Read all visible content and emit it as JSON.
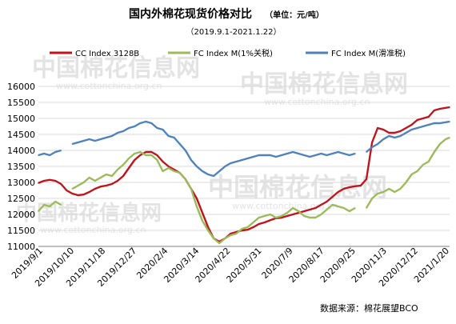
{
  "header": {
    "title": "国内外棉花现货价格对比",
    "unit": "（单位：元/吨）",
    "date_range": "（2019.9.1-2021.1.22）"
  },
  "source": "数据来源：棉花展望BCO",
  "watermark": {
    "brand_cn": "中国棉花信息网",
    "url": "www.cottonchina.org.cn"
  },
  "colors": {
    "cc_index": "#c0141c",
    "fc_1pct": "#9bbb59",
    "fc_sliding": "#4f81bd",
    "grid": "#d9d9d9",
    "axis": "#7f7f7f",
    "text": "#000000",
    "watermark": "#e3e3e3"
  },
  "chart_data": {
    "type": "line",
    "title": "国内外棉花现货价格对比",
    "subtitle": "（2019.9.1-2021.1.22）",
    "unit": "元/吨",
    "xlabel": "",
    "ylabel": "",
    "ylim": [
      11000,
      16000
    ],
    "yticks": [
      11000,
      11500,
      12000,
      12500,
      13000,
      13500,
      14000,
      14500,
      15000,
      15500,
      16000
    ],
    "y_tick_labels": [
      "11000",
      "11500",
      "12000",
      "12500",
      "13000",
      "13500",
      "14000",
      "14500",
      "15000",
      "15500",
      "16000"
    ],
    "x_tick_labels": [
      "2019/9/1",
      "2019/10/10",
      "2019/11/18",
      "2019/12/27",
      "2020/2/4",
      "2020/3/14",
      "2020/4/22",
      "2020/5/31",
      "2020/7/9",
      "2020/8/17",
      "2020/9/25",
      "2020/11/3",
      "2020/12/12",
      "2021/1/20"
    ],
    "x_start": "2019-09-01",
    "x_end": "2021-01-22",
    "grid": "horizontal",
    "legend_position": "top",
    "series": [
      {
        "name": "CC Index 3128B",
        "color": "#c0141c",
        "points": [
          [
            "2019-09-01",
            12980
          ],
          [
            "2019-09-08",
            13050
          ],
          [
            "2019-09-15",
            13080
          ],
          [
            "2019-09-22",
            13050
          ],
          [
            "2019-09-29",
            12950
          ],
          [
            "2019-10-06",
            12750
          ],
          [
            "2019-10-13",
            12650
          ],
          [
            "2019-10-20",
            12600
          ],
          [
            "2019-10-27",
            12620
          ],
          [
            "2019-11-03",
            12700
          ],
          [
            "2019-11-10",
            12800
          ],
          [
            "2019-11-17",
            12870
          ],
          [
            "2019-11-24",
            12900
          ],
          [
            "2019-12-01",
            12950
          ],
          [
            "2019-12-08",
            13050
          ],
          [
            "2019-12-15",
            13200
          ],
          [
            "2019-12-22",
            13450
          ],
          [
            "2019-12-29",
            13700
          ],
          [
            "2020-01-05",
            13850
          ],
          [
            "2020-01-12",
            13950
          ],
          [
            "2020-01-19",
            13950
          ],
          [
            "2020-01-26",
            13850
          ],
          [
            "2020-02-02",
            13650
          ],
          [
            "2020-02-09",
            13500
          ],
          [
            "2020-02-16",
            13400
          ],
          [
            "2020-02-23",
            13300
          ],
          [
            "2020-03-01",
            13100
          ],
          [
            "2020-03-08",
            12800
          ],
          [
            "2020-03-15",
            12500
          ],
          [
            "2020-03-22",
            12050
          ],
          [
            "2020-03-29",
            11600
          ],
          [
            "2020-04-05",
            11250
          ],
          [
            "2020-04-12",
            11150
          ],
          [
            "2020-04-19",
            11250
          ],
          [
            "2020-04-26",
            11400
          ],
          [
            "2020-05-03",
            11450
          ],
          [
            "2020-05-10",
            11500
          ],
          [
            "2020-05-17",
            11520
          ],
          [
            "2020-05-24",
            11600
          ],
          [
            "2020-05-31",
            11700
          ],
          [
            "2020-06-07",
            11750
          ],
          [
            "2020-06-14",
            11820
          ],
          [
            "2020-06-21",
            11880
          ],
          [
            "2020-06-28",
            11900
          ],
          [
            "2020-07-05",
            11950
          ],
          [
            "2020-07-12",
            12000
          ],
          [
            "2020-07-19",
            12050
          ],
          [
            "2020-07-26",
            12100
          ],
          [
            "2020-08-02",
            12150
          ],
          [
            "2020-08-09",
            12200
          ],
          [
            "2020-08-16",
            12300
          ],
          [
            "2020-08-23",
            12400
          ],
          [
            "2020-08-30",
            12550
          ],
          [
            "2020-09-06",
            12700
          ],
          [
            "2020-09-13",
            12800
          ],
          [
            "2020-09-20",
            12850
          ],
          [
            "2020-09-27",
            12880
          ],
          [
            "2020-10-04",
            12900
          ],
          [
            "2020-10-11",
            13100
          ],
          [
            "2020-10-18",
            14250
          ],
          [
            "2020-10-25",
            14700
          ],
          [
            "2020-11-01",
            14650
          ],
          [
            "2020-11-08",
            14550
          ],
          [
            "2020-11-15",
            14550
          ],
          [
            "2020-11-22",
            14600
          ],
          [
            "2020-11-29",
            14700
          ],
          [
            "2020-12-06",
            14800
          ],
          [
            "2020-12-13",
            14950
          ],
          [
            "2020-12-20",
            15000
          ],
          [
            "2020-12-27",
            15050
          ],
          [
            "2021-01-03",
            15250
          ],
          [
            "2021-01-10",
            15300
          ],
          [
            "2021-01-17",
            15330
          ],
          [
            "2021-01-22",
            15350
          ]
        ]
      },
      {
        "name": "FC Index M(1%关税)",
        "color": "#9bbb59",
        "points": [
          [
            "2019-09-01",
            12100
          ],
          [
            "2019-09-08",
            12300
          ],
          [
            "2019-09-15",
            12250
          ],
          [
            "2019-09-22",
            12400
          ],
          [
            "2019-09-29",
            12300
          ],
          [
            "2019-10-06",
            null
          ],
          [
            "2019-10-13",
            12800
          ],
          [
            "2019-10-20",
            12900
          ],
          [
            "2019-10-27",
            13000
          ],
          [
            "2019-11-03",
            13150
          ],
          [
            "2019-11-10",
            13050
          ],
          [
            "2019-11-17",
            13150
          ],
          [
            "2019-11-24",
            13250
          ],
          [
            "2019-12-01",
            13200
          ],
          [
            "2019-12-08",
            13400
          ],
          [
            "2019-12-15",
            13550
          ],
          [
            "2019-12-22",
            13750
          ],
          [
            "2019-12-29",
            13900
          ],
          [
            "2020-01-05",
            13950
          ],
          [
            "2020-01-12",
            13850
          ],
          [
            "2020-01-19",
            13850
          ],
          [
            "2020-01-26",
            13700
          ],
          [
            "2020-02-02",
            13350
          ],
          [
            "2020-02-09",
            13450
          ],
          [
            "2020-02-16",
            13350
          ],
          [
            "2020-02-23",
            13300
          ],
          [
            "2020-03-01",
            13100
          ],
          [
            "2020-03-08",
            12800
          ],
          [
            "2020-03-15",
            12250
          ],
          [
            "2020-03-22",
            11800
          ],
          [
            "2020-03-29",
            11500
          ],
          [
            "2020-04-05",
            11250
          ],
          [
            "2020-04-12",
            11100
          ],
          [
            "2020-04-19",
            11250
          ],
          [
            "2020-04-26",
            11350
          ],
          [
            "2020-05-03",
            11400
          ],
          [
            "2020-05-10",
            11550
          ],
          [
            "2020-05-17",
            11600
          ],
          [
            "2020-05-24",
            11750
          ],
          [
            "2020-05-31",
            11900
          ],
          [
            "2020-06-07",
            11950
          ],
          [
            "2020-06-14",
            12000
          ],
          [
            "2020-06-21",
            11900
          ],
          [
            "2020-06-28",
            11950
          ],
          [
            "2020-07-05",
            12050
          ],
          [
            "2020-07-12",
            12200
          ],
          [
            "2020-07-19",
            12100
          ],
          [
            "2020-07-26",
            11950
          ],
          [
            "2020-08-02",
            11900
          ],
          [
            "2020-08-09",
            11900
          ],
          [
            "2020-08-16",
            12000
          ],
          [
            "2020-08-23",
            12150
          ],
          [
            "2020-08-30",
            12300
          ],
          [
            "2020-09-06",
            12250
          ],
          [
            "2020-09-13",
            12200
          ],
          [
            "2020-09-20",
            12100
          ],
          [
            "2020-09-27",
            12200
          ],
          [
            "2020-10-04",
            null
          ],
          [
            "2020-10-11",
            12200
          ],
          [
            "2020-10-18",
            12500
          ],
          [
            "2020-10-25",
            12650
          ],
          [
            "2020-11-01",
            12700
          ],
          [
            "2020-11-08",
            12800
          ],
          [
            "2020-11-15",
            12700
          ],
          [
            "2020-11-22",
            12800
          ],
          [
            "2020-11-29",
            13000
          ],
          [
            "2020-12-06",
            13250
          ],
          [
            "2020-12-13",
            13350
          ],
          [
            "2020-12-20",
            13550
          ],
          [
            "2020-12-27",
            13650
          ],
          [
            "2021-01-03",
            13950
          ],
          [
            "2021-01-10",
            14200
          ],
          [
            "2021-01-17",
            14350
          ],
          [
            "2021-01-22",
            14400
          ]
        ]
      },
      {
        "name": "FC Index M(滑准税)",
        "color": "#4f81bd",
        "points": [
          [
            "2019-09-01",
            13850
          ],
          [
            "2019-09-08",
            13900
          ],
          [
            "2019-09-15",
            13850
          ],
          [
            "2019-09-22",
            13950
          ],
          [
            "2019-09-29",
            14000
          ],
          [
            "2019-10-06",
            null
          ],
          [
            "2019-10-13",
            14200
          ],
          [
            "2019-10-20",
            14250
          ],
          [
            "2019-10-27",
            14300
          ],
          [
            "2019-11-03",
            14350
          ],
          [
            "2019-11-10",
            14300
          ],
          [
            "2019-11-17",
            14350
          ],
          [
            "2019-11-24",
            14400
          ],
          [
            "2019-12-01",
            14450
          ],
          [
            "2019-12-08",
            14550
          ],
          [
            "2019-12-15",
            14600
          ],
          [
            "2019-12-22",
            14700
          ],
          [
            "2019-12-29",
            14750
          ],
          [
            "2020-01-05",
            14850
          ],
          [
            "2020-01-12",
            14900
          ],
          [
            "2020-01-19",
            14850
          ],
          [
            "2020-01-26",
            14700
          ],
          [
            "2020-02-02",
            14650
          ],
          [
            "2020-02-09",
            14450
          ],
          [
            "2020-02-16",
            14400
          ],
          [
            "2020-02-23",
            14200
          ],
          [
            "2020-03-01",
            14000
          ],
          [
            "2020-03-08",
            13700
          ],
          [
            "2020-03-15",
            13500
          ],
          [
            "2020-03-22",
            13350
          ],
          [
            "2020-03-29",
            13250
          ],
          [
            "2020-04-05",
            13200
          ],
          [
            "2020-04-12",
            13350
          ],
          [
            "2020-04-19",
            13500
          ],
          [
            "2020-04-26",
            13600
          ],
          [
            "2020-05-03",
            13650
          ],
          [
            "2020-05-10",
            13700
          ],
          [
            "2020-05-17",
            13750
          ],
          [
            "2020-05-24",
            13800
          ],
          [
            "2020-05-31",
            13850
          ],
          [
            "2020-06-07",
            13850
          ],
          [
            "2020-06-14",
            13850
          ],
          [
            "2020-06-21",
            13800
          ],
          [
            "2020-06-28",
            13850
          ],
          [
            "2020-07-05",
            13900
          ],
          [
            "2020-07-12",
            13950
          ],
          [
            "2020-07-19",
            13900
          ],
          [
            "2020-07-26",
            13850
          ],
          [
            "2020-08-02",
            13800
          ],
          [
            "2020-08-09",
            13850
          ],
          [
            "2020-08-16",
            13900
          ],
          [
            "2020-08-23",
            13850
          ],
          [
            "2020-08-30",
            13900
          ],
          [
            "2020-09-06",
            13950
          ],
          [
            "2020-09-13",
            13900
          ],
          [
            "2020-09-20",
            13850
          ],
          [
            "2020-09-27",
            13900
          ],
          [
            "2020-10-04",
            null
          ],
          [
            "2020-10-11",
            13950
          ],
          [
            "2020-10-18",
            14100
          ],
          [
            "2020-10-25",
            14200
          ],
          [
            "2020-11-01",
            14350
          ],
          [
            "2020-11-08",
            14450
          ],
          [
            "2020-11-15",
            14400
          ],
          [
            "2020-11-22",
            14450
          ],
          [
            "2020-11-29",
            14550
          ],
          [
            "2020-12-06",
            14650
          ],
          [
            "2020-12-13",
            14700
          ],
          [
            "2020-12-20",
            14750
          ],
          [
            "2020-12-27",
            14800
          ],
          [
            "2021-01-03",
            14850
          ],
          [
            "2021-01-10",
            14850
          ],
          [
            "2021-01-17",
            14880
          ],
          [
            "2021-01-22",
            14900
          ]
        ]
      }
    ]
  }
}
